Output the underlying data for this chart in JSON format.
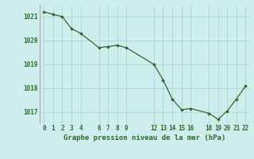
{
  "x": [
    0,
    1,
    2,
    3,
    4,
    6,
    7,
    8,
    9,
    12,
    13,
    14,
    15,
    16,
    18,
    19,
    20,
    21,
    22
  ],
  "y": [
    1021.2,
    1021.1,
    1021.0,
    1020.5,
    1020.3,
    1019.7,
    1019.75,
    1019.8,
    1019.7,
    1019.0,
    1018.35,
    1017.55,
    1017.1,
    1017.15,
    1016.95,
    1016.7,
    1017.05,
    1017.55,
    1018.1
  ],
  "line_color": "#2d6a2d",
  "marker": "D",
  "marker_size": 1.8,
  "linewidth": 0.9,
  "bg_color": "#ceeeed",
  "grid_color": "#a8d8d5",
  "title": "Graphe pression niveau de la mer (hPa)",
  "title_color": "#2d6a2d",
  "title_fontsize": 6.5,
  "ylim": [
    1016.5,
    1021.5
  ],
  "xlim": [
    -0.5,
    22.5
  ],
  "yticks": [
    1017,
    1018,
    1019,
    1020,
    1021
  ],
  "xtick_labels": [
    "0",
    "1",
    "2",
    "3",
    "4",
    "6",
    "7",
    "8",
    "9",
    "12",
    "13",
    "14",
    "15",
    "16",
    "18",
    "19",
    "20",
    "21",
    "22"
  ],
  "xtick_positions": [
    0,
    1,
    2,
    3,
    4,
    6,
    7,
    8,
    9,
    12,
    13,
    14,
    15,
    16,
    18,
    19,
    20,
    21,
    22
  ],
  "tick_fontsize": 5.5
}
